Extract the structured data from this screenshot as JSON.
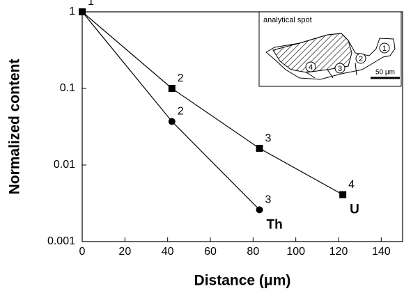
{
  "chart_data": {
    "type": "line",
    "xlabel": "Distance (μm)",
    "ylabel": "Normalized content",
    "xlim": [
      0,
      150
    ],
    "xticks": [
      0,
      20,
      40,
      60,
      80,
      100,
      120,
      140
    ],
    "ylim": [
      0.001,
      1
    ],
    "yticks": [
      0.001,
      0.01,
      0.1,
      1
    ],
    "yscale": "log",
    "grid": false,
    "series": [
      {
        "name": "U",
        "color": "#000000",
        "marker": "square",
        "x": [
          0,
          42,
          83,
          122
        ],
        "values": [
          1,
          0.1,
          0.0165,
          0.0041
        ],
        "point_labels": [
          "1",
          "2",
          "3",
          "4"
        ]
      },
      {
        "name": "Th",
        "color": "#000000",
        "marker": "circle",
        "x": [
          0,
          42,
          83
        ],
        "values": [
          1,
          0.037,
          0.0026
        ],
        "point_labels": [
          null,
          "2",
          "3"
        ]
      }
    ],
    "inset": {
      "title": "analytical spot",
      "scale": "50 μm",
      "spots": [
        "1",
        "2",
        "3",
        "4"
      ]
    }
  }
}
